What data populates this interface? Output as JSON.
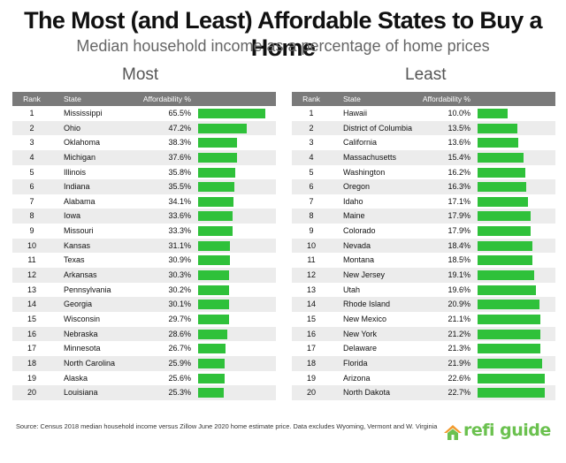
{
  "title": "The Most (and Least) Affordable States to Buy a Home",
  "subtitle": "Median household income as a percentage of home prices",
  "source": "Source: Census 2018 median household income versus Zillow June 2020 home estimate price. Data excludes Wyoming, Vermont and W. Virginia",
  "logo": {
    "text": "refi guide",
    "icon": "house-roof-icon"
  },
  "colors": {
    "bar": "#2fc13a",
    "header": "#7a7a7a",
    "row_alt": "#ececec",
    "logo": "#6bc14f"
  },
  "chart_data": [
    {
      "type": "table",
      "heading": "Most",
      "columns": [
        "Rank",
        "State",
        "Affordability %"
      ],
      "bar_scale_max": 65.5,
      "rows": [
        {
          "rank": "1",
          "state": "Mississippi",
          "pct": "65.5%",
          "value": 65.5
        },
        {
          "rank": "2",
          "state": "Ohio",
          "pct": "47.2%",
          "value": 47.2
        },
        {
          "rank": "3",
          "state": "Oklahoma",
          "pct": "38.3%",
          "value": 38.3
        },
        {
          "rank": "4",
          "state": "Michigan",
          "pct": "37.6%",
          "value": 37.6
        },
        {
          "rank": "5",
          "state": "Illinois",
          "pct": "35.8%",
          "value": 35.8
        },
        {
          "rank": "6",
          "state": "Indiana",
          "pct": "35.5%",
          "value": 35.5
        },
        {
          "rank": "7",
          "state": "Alabama",
          "pct": "34.1%",
          "value": 34.1
        },
        {
          "rank": "8",
          "state": "Iowa",
          "pct": "33.6%",
          "value": 33.6
        },
        {
          "rank": "9",
          "state": "Missouri",
          "pct": "33.3%",
          "value": 33.3
        },
        {
          "rank": "10",
          "state": "Kansas",
          "pct": "31.1%",
          "value": 31.1
        },
        {
          "rank": "11",
          "state": "Texas",
          "pct": "30.9%",
          "value": 30.9
        },
        {
          "rank": "12",
          "state": "Arkansas",
          "pct": "30.3%",
          "value": 30.3
        },
        {
          "rank": "13",
          "state": "Pennsylvania",
          "pct": "30.2%",
          "value": 30.2
        },
        {
          "rank": "14",
          "state": "Georgia",
          "pct": "30.1%",
          "value": 30.1
        },
        {
          "rank": "15",
          "state": "Wisconsin",
          "pct": "29.7%",
          "value": 29.7
        },
        {
          "rank": "16",
          "state": "Nebraska",
          "pct": "28.6%",
          "value": 28.6
        },
        {
          "rank": "17",
          "state": "Minnesota",
          "pct": "26.7%",
          "value": 26.7
        },
        {
          "rank": "18",
          "state": "North Carolina",
          "pct": "25.9%",
          "value": 25.9
        },
        {
          "rank": "19",
          "state": "Alaska",
          "pct": "25.6%",
          "value": 25.6
        },
        {
          "rank": "20",
          "state": "Louisiana",
          "pct": "25.3%",
          "value": 25.3
        }
      ]
    },
    {
      "type": "table",
      "heading": "Least",
      "columns": [
        "Rank",
        "State",
        "Affordability %"
      ],
      "bar_scale_max": 22.7,
      "rows": [
        {
          "rank": "1",
          "state": "Hawaii",
          "pct": "10.0%",
          "value": 10.0
        },
        {
          "rank": "2",
          "state": "District of Columbia",
          "pct": "13.5%",
          "value": 13.5
        },
        {
          "rank": "3",
          "state": "California",
          "pct": "13.6%",
          "value": 13.6
        },
        {
          "rank": "4",
          "state": "Massachusetts",
          "pct": "15.4%",
          "value": 15.4
        },
        {
          "rank": "5",
          "state": "Washington",
          "pct": "16.2%",
          "value": 16.2
        },
        {
          "rank": "6",
          "state": "Oregon",
          "pct": "16.3%",
          "value": 16.3
        },
        {
          "rank": "7",
          "state": "Idaho",
          "pct": "17.1%",
          "value": 17.1
        },
        {
          "rank": "8",
          "state": "Maine",
          "pct": "17.9%",
          "value": 17.9
        },
        {
          "rank": "9",
          "state": "Colorado",
          "pct": "17.9%",
          "value": 17.9
        },
        {
          "rank": "10",
          "state": "Nevada",
          "pct": "18.4%",
          "value": 18.4
        },
        {
          "rank": "11",
          "state": "Montana",
          "pct": "18.5%",
          "value": 18.5
        },
        {
          "rank": "12",
          "state": "New Jersey",
          "pct": "19.1%",
          "value": 19.1
        },
        {
          "rank": "13",
          "state": "Utah",
          "pct": "19.6%",
          "value": 19.6
        },
        {
          "rank": "14",
          "state": "Rhode Island",
          "pct": "20.9%",
          "value": 20.9
        },
        {
          "rank": "15",
          "state": "New Mexico",
          "pct": "21.1%",
          "value": 21.1
        },
        {
          "rank": "16",
          "state": "New York",
          "pct": "21.2%",
          "value": 21.2
        },
        {
          "rank": "17",
          "state": "Delaware",
          "pct": "21.3%",
          "value": 21.3
        },
        {
          "rank": "18",
          "state": "Florida",
          "pct": "21.9%",
          "value": 21.9
        },
        {
          "rank": "19",
          "state": "Arizona",
          "pct": "22.6%",
          "value": 22.6
        },
        {
          "rank": "20",
          "state": "North Dakota",
          "pct": "22.7%",
          "value": 22.7
        }
      ]
    }
  ]
}
